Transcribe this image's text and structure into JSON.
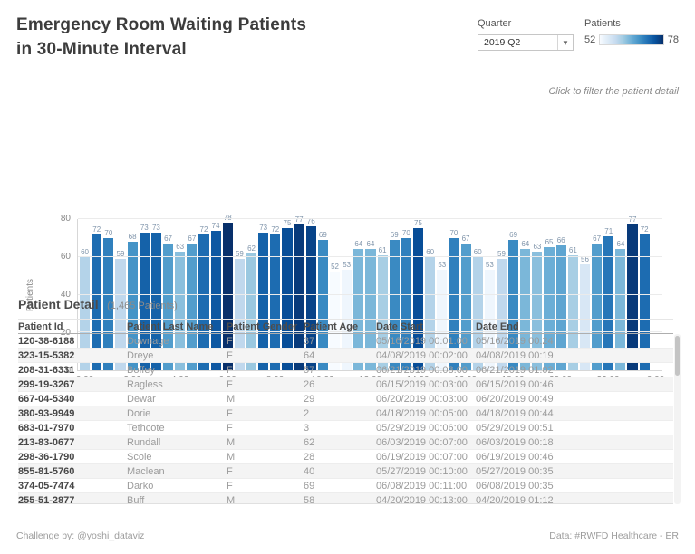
{
  "title": {
    "line1": "Emergency Room Waiting Patients",
    "line2": "in 30-Minute Interval"
  },
  "controls": {
    "quarter_label": "Quarter",
    "quarter_value": "2019 Q2",
    "legend_label": "Patients",
    "legend_min": "52",
    "legend_max": "78"
  },
  "hint": "Click to filter the patient detail",
  "chart_data": {
    "type": "bar",
    "title": "Emergency Room Waiting Patients in 30-Minute Interval",
    "xlabel": "",
    "ylabel": "Patients",
    "ylim": [
      0,
      80
    ],
    "yticks": [
      0,
      20,
      40,
      60,
      80
    ],
    "grid": true,
    "x": [
      "0:00",
      "0:30",
      "1:00",
      "1:30",
      "2:00",
      "2:30",
      "3:00",
      "3:30",
      "4:00",
      "4:30",
      "5:00",
      "5:30",
      "6:00",
      "6:30",
      "7:00",
      "7:30",
      "8:00",
      "8:30",
      "9:00",
      "9:30",
      "10:00",
      "10:30",
      "11:00",
      "11:30",
      "12:00",
      "12:30",
      "13:00",
      "13:30",
      "14:00",
      "14:30",
      "15:00",
      "15:30",
      "16:00",
      "16:30",
      "17:00",
      "17:30",
      "18:00",
      "18:30",
      "19:00",
      "19:30",
      "20:00",
      "20:30",
      "21:00",
      "21:30",
      "22:00",
      "22:30",
      "23:00",
      "23:30"
    ],
    "values": [
      60,
      72,
      70,
      59,
      68,
      73,
      73,
      67,
      63,
      67,
      72,
      74,
      78,
      59,
      62,
      73,
      72,
      75,
      77,
      76,
      69,
      52,
      53,
      64,
      64,
      61,
      69,
      70,
      75,
      60,
      53,
      70,
      67,
      60,
      53,
      59,
      69,
      64,
      63,
      65,
      66,
      61,
      56,
      67,
      71,
      64,
      77,
      72
    ],
    "xtick_labels": [
      "0:00",
      "2:00",
      "4:00",
      "6:00",
      "8:00",
      "10:00",
      "12:00",
      "14:00",
      "16:00",
      "18:00",
      "20:00",
      "22:00",
      "0:00"
    ],
    "color_scale": {
      "domain": [
        52,
        78
      ],
      "stops": [
        "#f7fbff",
        "#deebf7",
        "#c6dbef",
        "#9ecae1",
        "#6baed6",
        "#4292c6",
        "#2171b5",
        "#08519c",
        "#08306b"
      ]
    }
  },
  "detail": {
    "heading": "Patient Detail",
    "count_note": "(1,465 Patients)",
    "columns": [
      "Patient Id",
      "Patient Last Name",
      "Patient Gender",
      "Patient Age",
      "Date Start",
      "Date End"
    ],
    "rows": [
      [
        "120-38-6188",
        "Downage",
        "F",
        "37",
        "05/16/2019 00:01:00",
        "05/16/2019 00:24"
      ],
      [
        "323-15-5382",
        "Dreye",
        "F",
        "64",
        "04/08/2019 00:02:00",
        "04/08/2019 00:19"
      ],
      [
        "208-31-6331",
        "Boffey",
        "F",
        "57",
        "06/21/2019 00:03:00",
        "06/21/2019 01:02"
      ],
      [
        "299-19-3267",
        "Ragless",
        "F",
        "26",
        "06/15/2019 00:03:00",
        "06/15/2019 00:46"
      ],
      [
        "667-04-5340",
        "Dewar",
        "M",
        "29",
        "06/20/2019 00:03:00",
        "06/20/2019 00:49"
      ],
      [
        "380-93-9949",
        "Dorie",
        "F",
        "2",
        "04/18/2019 00:05:00",
        "04/18/2019 00:44"
      ],
      [
        "683-01-7970",
        "Tethcote",
        "F",
        "3",
        "05/29/2019 00:06:00",
        "05/29/2019 00:51"
      ],
      [
        "213-83-0677",
        "Rundall",
        "M",
        "62",
        "06/03/2019 00:07:00",
        "06/03/2019 00:18"
      ],
      [
        "298-36-1790",
        "Scole",
        "M",
        "28",
        "06/19/2019 00:07:00",
        "06/19/2019 00:46"
      ],
      [
        "855-81-5760",
        "Maclean",
        "F",
        "40",
        "05/27/2019 00:10:00",
        "05/27/2019 00:35"
      ],
      [
        "374-05-7474",
        "Darko",
        "F",
        "69",
        "06/08/2019 00:11:00",
        "06/08/2019 00:35"
      ],
      [
        "255-51-2877",
        "Buff",
        "M",
        "58",
        "04/20/2019 00:13:00",
        "04/20/2019 01:12"
      ]
    ]
  },
  "footer": {
    "left": "Challenge by: @yoshi_dataviz",
    "right": "Data: #RWFD Healthcare - ER"
  }
}
